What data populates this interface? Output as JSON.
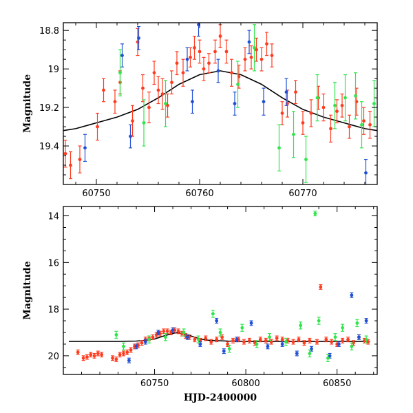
{
  "chart_data": [
    {
      "type": "scatter",
      "panel": "top",
      "ylabel": "Magnitude",
      "xlabel": "",
      "xlim": [
        60746.8,
        60777.2
      ],
      "ylim": [
        19.6,
        18.76
      ],
      "y_inverted": true,
      "x_ticks": [
        60750,
        60760,
        60770
      ],
      "x_tick_labels": [
        "60750",
        "60760",
        "60770"
      ],
      "y_ticks": [
        18.8,
        19.0,
        19.2,
        19.4
      ],
      "y_tick_labels": [
        "18.8",
        "19",
        "19.2",
        "19.4"
      ],
      "model_curve": {
        "description_free": true,
        "x": [
          60746.8,
          60748,
          60750,
          60752,
          60754,
          60756,
          60758,
          60760,
          60762,
          60764,
          60766,
          60768,
          60770,
          60772,
          60774,
          60776,
          60777.2
        ],
        "y": [
          19.32,
          19.31,
          19.28,
          19.25,
          19.21,
          19.15,
          19.08,
          19.03,
          19.01,
          19.03,
          19.08,
          19.15,
          19.21,
          19.25,
          19.28,
          19.31,
          19.32
        ]
      },
      "series": [
        {
          "color": "#ff3b1f",
          "x": [
            60747.0,
            60747.5,
            60748.4,
            60750.1,
            60750.7,
            60751.8,
            60752.3,
            60753.5,
            60754.0,
            60754.5,
            60755.1,
            60755.6,
            60756.0,
            60756.4,
            60756.9,
            60757.3,
            60757.8,
            60758.4,
            60759.1,
            60759.5,
            60760.0,
            60760.4,
            60760.9,
            60761.5,
            60762.0,
            60762.6,
            60763.1,
            60763.8,
            60764.4,
            60765.0,
            60765.5,
            60766.0,
            60766.5,
            60767.0,
            60768.0,
            60768.5,
            60769.3,
            60770.0,
            60770.8,
            60771.5,
            60772.0,
            60772.7,
            60773.3,
            60773.8,
            60774.5,
            60775.2,
            60775.9,
            60776.5
          ],
          "y": [
            19.44,
            19.5,
            19.47,
            19.3,
            19.11,
            19.17,
            19.07,
            19.27,
            18.86,
            19.1,
            19.2,
            19.02,
            19.11,
            19.13,
            19.19,
            19.07,
            18.97,
            19.02,
            18.94,
            18.89,
            18.91,
            19.0,
            18.97,
            18.91,
            18.83,
            18.91,
            19.02,
            19.04,
            18.95,
            18.94,
            18.9,
            18.95,
            18.87,
            18.93,
            19.23,
            19.18,
            19.12,
            19.28,
            19.23,
            19.15,
            19.2,
            19.31,
            19.22,
            19.19,
            19.3,
            19.17,
            19.27,
            19.29
          ],
          "err": [
            0.07,
            0.07,
            0.07,
            0.07,
            0.06,
            0.06,
            0.06,
            0.08,
            0.07,
            0.07,
            0.08,
            0.06,
            0.07,
            0.08,
            0.06,
            0.06,
            0.06,
            0.07,
            0.05,
            0.06,
            0.06,
            0.06,
            0.05,
            0.06,
            0.06,
            0.06,
            0.07,
            0.06,
            0.06,
            0.06,
            0.06,
            0.06,
            0.06,
            0.06,
            0.06,
            0.07,
            0.06,
            0.06,
            0.07,
            0.06,
            0.07,
            0.07,
            0.06,
            0.06,
            0.06,
            0.07,
            0.07,
            0.07
          ]
        },
        {
          "color": "#1f4fd6",
          "x": [
            60748.9,
            60752.5,
            60753.3,
            60754.1,
            60758.8,
            60759.3,
            60759.9,
            60761.8,
            60763.4,
            60764.8,
            60766.2,
            60768.4,
            60776.1
          ],
          "y": [
            19.41,
            18.93,
            19.35,
            18.84,
            18.95,
            19.17,
            18.77,
            19.01,
            19.18,
            18.86,
            19.17,
            19.12,
            19.54
          ],
          "err": [
            0.07,
            0.06,
            0.06,
            0.06,
            0.06,
            0.06,
            0.06,
            0.06,
            0.06,
            0.06,
            0.07,
            0.07,
            0.07
          ]
        },
        {
          "color": "#2ee64a",
          "x": [
            60752.3,
            60754.6,
            60756.7,
            60763.7,
            60765.3,
            60767.7,
            60769.1,
            60770.3,
            60771.4,
            60773.1,
            60774.1,
            60775.1,
            60775.7,
            60776.9
          ],
          "y": [
            19.02,
            19.28,
            19.18,
            19.08,
            18.89,
            19.41,
            19.34,
            19.47,
            19.15,
            19.19,
            19.15,
            19.14,
            19.29,
            19.18
          ],
          "err": [
            0.12,
            0.12,
            0.12,
            0.12,
            0.12,
            0.12,
            0.12,
            0.12,
            0.12,
            0.12,
            0.12,
            0.12,
            0.12,
            0.12
          ]
        }
      ]
    },
    {
      "type": "scatter",
      "panel": "bottom",
      "ylabel": "Magnitude",
      "xlabel": "HJD-2400000",
      "xlim": [
        60700,
        60872
      ],
      "ylim": [
        20.8,
        13.6
      ],
      "y_inverted": true,
      "x_ticks": [
        60750,
        60800,
        60850
      ],
      "x_tick_labels": [
        "60750",
        "60800",
        "60850"
      ],
      "y_ticks": [
        14,
        16,
        18,
        20
      ],
      "y_tick_labels": [
        "14",
        "16",
        "18",
        "20"
      ],
      "model_curve": {
        "x": [
          60703,
          60730,
          60740,
          60745,
          60750,
          60755,
          60760,
          60762,
          60765,
          60770,
          60775,
          60780,
          60790,
          60800,
          60820,
          60840,
          60868
        ],
        "y": [
          19.38,
          19.38,
          19.37,
          19.34,
          19.28,
          19.15,
          19.04,
          19.01,
          19.04,
          19.15,
          19.28,
          19.34,
          19.37,
          19.38,
          19.38,
          19.38,
          19.38
        ]
      },
      "series": [
        {
          "color": "#ff3b1f",
          "x": [
            60708,
            60711,
            60713,
            60715,
            60717,
            60719,
            60721,
            60727,
            60729,
            60731,
            60733,
            60735,
            60737,
            60739,
            60741,
            60743,
            60745,
            60747,
            60749,
            60751,
            60753,
            60755,
            60757,
            60759,
            60761,
            60763,
            60765,
            60767,
            60769,
            60772,
            60775,
            60778,
            60781,
            60784,
            60787,
            60790,
            60793,
            60796,
            60799,
            60802,
            60805,
            60808,
            60811,
            60814,
            60817,
            60820,
            60823,
            60826,
            60829,
            60832,
            60835,
            60839,
            60841,
            60844,
            60847,
            60850,
            60853,
            60856,
            60859,
            60862,
            60865,
            60867
          ],
          "y": [
            19.85,
            20.1,
            20.05,
            19.95,
            20.0,
            19.9,
            19.95,
            20.1,
            20.15,
            19.95,
            19.9,
            19.85,
            19.75,
            19.6,
            19.55,
            19.45,
            19.3,
            19.25,
            19.2,
            19.1,
            19.05,
            18.95,
            18.95,
            19.0,
            18.9,
            18.95,
            19.05,
            19.15,
            19.2,
            19.3,
            19.35,
            19.25,
            19.4,
            19.3,
            19.2,
            19.5,
            19.35,
            19.3,
            19.4,
            19.35,
            19.45,
            19.3,
            19.35,
            19.4,
            19.25,
            19.3,
            19.35,
            19.4,
            19.3,
            19.45,
            19.35,
            19.4,
            17.05,
            19.3,
            19.4,
            19.5,
            19.35,
            19.3,
            19.45,
            19.2,
            19.35,
            19.4
          ],
          "err": [
            0.1,
            0.1,
            0.1,
            0.1,
            0.1,
            0.1,
            0.1,
            0.1,
            0.1,
            0.1,
            0.1,
            0.1,
            0.1,
            0.1,
            0.1,
            0.1,
            0.1,
            0.1,
            0.1,
            0.1,
            0.1,
            0.1,
            0.1,
            0.1,
            0.1,
            0.1,
            0.1,
            0.1,
            0.1,
            0.1,
            0.1,
            0.1,
            0.1,
            0.1,
            0.1,
            0.1,
            0.1,
            0.1,
            0.1,
            0.1,
            0.1,
            0.1,
            0.1,
            0.1,
            0.1,
            0.1,
            0.1,
            0.1,
            0.1,
            0.1,
            0.1,
            0.1,
            0.1,
            0.1,
            0.1,
            0.1,
            0.1,
            0.1,
            0.1,
            0.1,
            0.1,
            0.1
          ]
        },
        {
          "color": "#1f4fd6",
          "x": [
            60736,
            60740,
            60745,
            60752,
            60760,
            60768,
            60775,
            60784,
            60788,
            60795,
            60803,
            60812,
            60820,
            60828,
            60836,
            60846,
            60851,
            60858,
            60862,
            60866
          ],
          "y": [
            20.2,
            19.6,
            19.4,
            19.0,
            18.9,
            19.2,
            19.5,
            18.5,
            19.8,
            19.3,
            18.6,
            19.6,
            19.5,
            19.9,
            19.7,
            20.0,
            19.5,
            17.4,
            19.2,
            18.5
          ],
          "err": [
            0.1,
            0.1,
            0.1,
            0.1,
            0.1,
            0.1,
            0.1,
            0.1,
            0.1,
            0.1,
            0.1,
            0.1,
            0.1,
            0.1,
            0.1,
            0.1,
            0.1,
            0.1,
            0.1,
            0.1
          ]
        },
        {
          "color": "#2ee64a",
          "x": [
            60729,
            60733,
            60747,
            60756,
            60766,
            60774,
            60782,
            60786,
            60791,
            60798,
            60806,
            60813,
            60822,
            60830,
            60835,
            60838,
            60840,
            60845,
            60849,
            60853,
            60858,
            60861,
            60866
          ],
          "y": [
            19.1,
            19.6,
            19.3,
            19.2,
            19.0,
            19.3,
            18.2,
            19.0,
            19.7,
            18.8,
            19.5,
            19.2,
            19.4,
            18.7,
            19.9,
            13.9,
            18.5,
            20.1,
            19.2,
            18.8,
            19.6,
            18.6,
            19.3
          ],
          "err": [
            0.15,
            0.15,
            0.15,
            0.15,
            0.15,
            0.15,
            0.15,
            0.15,
            0.15,
            0.15,
            0.15,
            0.15,
            0.15,
            0.15,
            0.15,
            0.1,
            0.15,
            0.15,
            0.15,
            0.15,
            0.15,
            0.15,
            0.15
          ]
        }
      ]
    }
  ]
}
